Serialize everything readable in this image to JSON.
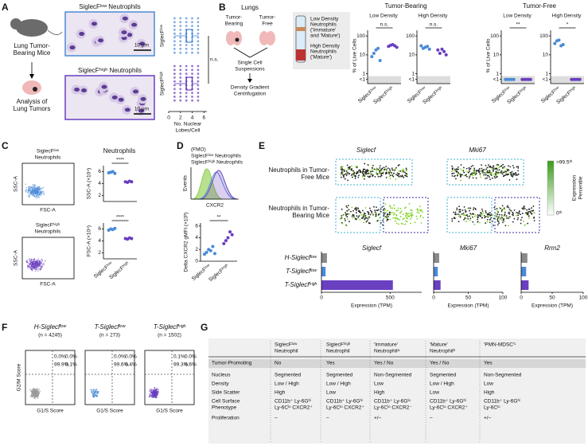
{
  "panel_labels": [
    "A",
    "B",
    "C",
    "D",
    "E",
    "F",
    "G"
  ],
  "a": {
    "mouse": [
      "Lung Tumor-",
      "Bearing Mice"
    ],
    "analysis": [
      "Analysis of",
      "Lung Tumors"
    ],
    "img_titles": [
      "SiglecFˡᵒʷ Neutrophils",
      "SiglecFʰⁱᵍʰ Neutrophils"
    ],
    "scale": [
      "10 μm",
      "10 μm"
    ],
    "box": {
      "type": "box",
      "rows": [
        "SiglecFˡᵒʷ",
        "SiglecFʰⁱᵍʰ"
      ],
      "colors": [
        "#4a8ad6",
        "#6a3fc0"
      ],
      "stats": [
        {
          "min": 1,
          "q1": 3,
          "median": 3,
          "q3": 4,
          "max": 5
        },
        {
          "min": 1,
          "q1": 3,
          "median": 3,
          "q3": 4,
          "max": 5
        }
      ],
      "xlabel": [
        "No. Nuclear",
        "Lobes/Cell"
      ],
      "xlim": [
        0,
        6.5
      ],
      "xticks": [
        0,
        2,
        4,
        6
      ],
      "annotation": "n.s."
    }
  },
  "b": {
    "lungs": "Lungs",
    "tb": [
      "Tumor-",
      "Bearing"
    ],
    "tf": [
      "Tumor-",
      "Free"
    ],
    "steps": [
      [
        "Single Cell",
        "Suspensions"
      ],
      [
        "Density Gradient",
        "Centrifugation"
      ]
    ],
    "tube": [
      [
        "Low Density",
        "Neutrophils",
        "('Immature'",
        "and 'Mature')"
      ],
      [
        "High Density",
        "Neutrophils",
        "('Mature')"
      ]
    ],
    "type": "dot",
    "log": true,
    "ylabel": "% of Live Cells",
    "ylim": [
      0.3,
      200
    ],
    "yticks": [
      {
        "value": 0.5,
        "label": "<1"
      },
      1,
      10,
      100
    ],
    "categories": [
      "SiglecFˡᵒʷ",
      "SiglecFʰⁱᵍʰ"
    ],
    "colors": [
      "#4a8ad6",
      "#6a3fc0"
    ],
    "groups": [
      {
        "title": "Tumor-Bearing",
        "charts": [
          {
            "title": "Low Density",
            "values": [
              [
                8,
                12,
                18,
                22,
                5
              ],
              [
                28,
                32,
                35,
                30,
                25
              ]
            ],
            "annotation": "n.s."
          },
          {
            "title": "High Density",
            "values": [
              [
                30,
                22,
                25,
                28,
                20
              ],
              [
                18,
                12,
                20,
                15,
                10
              ]
            ],
            "annotation": "n.s."
          }
        ]
      },
      {
        "title": "Tumor-Free",
        "charts": [
          {
            "title": "Low Density",
            "values": [
              [
                0.5,
                0.5,
                0.5,
                0.5,
                0.5
              ],
              [
                0.5,
                0.5,
                0.5,
                0.5,
                0.5
              ]
            ],
            "annotation": "**"
          },
          {
            "title": "High Density",
            "values": [
              [
                40,
                55,
                60,
                30,
                35
              ],
              [
                0.5,
                0.5,
                0.5,
                0.5,
                0.5
              ]
            ],
            "annotation": "*"
          }
        ]
      }
    ]
  },
  "c": {
    "flow_titles": [
      [
        "SiglecFˡᵒʷ",
        "Neutrophils"
      ],
      [
        "SiglecFʰⁱᵍʰ",
        "Neutrophils"
      ]
    ],
    "ssc": [
      "SSC-A",
      "SSC-A"
    ],
    "fsc": [
      "FSC-A",
      "FSC-A"
    ],
    "type": "dot",
    "title": "Neutrophils",
    "ylim": [
      1,
      7
    ],
    "yticks": [
      2,
      4,
      6
    ],
    "categories": [
      "SiglecFˡᵒʷ",
      "SiglecFʰⁱᵍʰ"
    ],
    "colors": [
      "#4a8ad6",
      "#6a3fc0"
    ],
    "charts": [
      {
        "ylabel": "SSC-A (×10⁴)",
        "values": [
          [
            5.8,
            5.9,
            6.0,
            5.7
          ],
          [
            4.3,
            4.2,
            4.4,
            4.3
          ]
        ],
        "annotation": "****"
      },
      {
        "ylabel": "FSC-A (×10⁴)",
        "values": [
          [
            5.8,
            6.0,
            5.9,
            6.1
          ],
          [
            4.4,
            4.3,
            4.5,
            4.4
          ]
        ],
        "annotation": "****"
      }
    ]
  },
  "d": {
    "legend": [
      "(FMO)",
      "SiglecFˡᵒʷ Neutrophils",
      "SiglecFʰⁱᵍʰ Neutrophils"
    ],
    "legend_colors": [
      "#8ccf4d",
      "#4a8ad6",
      "#6a3fc0"
    ],
    "events": "Events",
    "cxcr2": "CXCR2",
    "type": "dot",
    "ylabel": "Delta CXCR2 gMFI (×10³)",
    "ylim": [
      0,
      6.5
    ],
    "yticks": [
      0,
      2,
      4,
      6
    ],
    "categories": [
      "SiglecFˡᵒʷ",
      "SiglecFʰⁱᵍʰ"
    ],
    "colors": [
      "#4a8ad6",
      "#6a3fc0"
    ],
    "values": [
      [
        1.2,
        1.5,
        2.0,
        1.8,
        2.5,
        1.3
      ],
      [
        3.0,
        3.5,
        4.0,
        5.0,
        4.5
      ]
    ],
    "annotation": "**"
  },
  "e": {
    "genes_top": [
      "Siglecf",
      "Mki67"
    ],
    "rows_top": [
      [
        "Neutrophils in Tumor-",
        "Free Mice"
      ],
      [
        "Neutrophils in Tumor-",
        "Bearing Mice"
      ]
    ],
    "colorbar": {
      "top": ">99.5ᵗʰ",
      "bottom": "0ᵗʰ",
      "label": [
        "Expression",
        "Percentile"
      ]
    },
    "bars": {
      "type": "bar",
      "rows": [
        "H-Siglecfˡᵒʷ",
        "T-Siglecfˡᵒʷ",
        "T-Siglecfʰⁱᵍʰ"
      ],
      "colors": [
        "#8a8a8a",
        "#4a8ad6",
        "#6a3fc0"
      ],
      "xlabel": "Expression (TPM)",
      "genes": [
        {
          "name": "Siglecf",
          "values": [
            40,
            30,
            520
          ],
          "xlim": [
            0,
            730
          ],
          "xticks": [
            0,
            500
          ]
        },
        {
          "name": "Mki67",
          "values": [
            8,
            6,
            10
          ],
          "xlim": [
            0,
            100
          ],
          "xticks": [
            0,
            50,
            100
          ]
        },
        {
          "name": "Rrm2",
          "values": [
            10,
            8,
            12
          ],
          "xlim": [
            0,
            100
          ],
          "xticks": [
            0,
            50,
            100
          ]
        }
      ]
    }
  },
  "f": {
    "ylabel": "G2/M Score",
    "xlabel": "G1/S Score",
    "plots": [
      {
        "title": "H-Siglecfˡᵒʷ",
        "n": "(n = 4245)",
        "q": [
          "0.0%",
          "0.0%",
          "99.9%",
          "0.1%"
        ],
        "color": "#9a9a9a"
      },
      {
        "title": "T-Siglecfˡᵒʷ",
        "n": "(n = 273)",
        "q": [
          "0.0%",
          "0.0%",
          "99.6%",
          "0.4%"
        ],
        "color": "#4a8ad6"
      },
      {
        "title": "T-Siglecfʰⁱᵍʰ",
        "n": "(n = 1502)",
        "q": [
          "0.1%",
          "0.0%",
          "99.3%",
          "0.6%"
        ],
        "color": "#6a3fc0"
      }
    ]
  },
  "g": {
    "header": [
      [],
      [
        "SiglecFˡᵒʷ",
        "Neutrophil"
      ],
      [
        "SiglecFʰⁱᵍʰ",
        "Neutrophil"
      ],
      [
        "'Immature'",
        "Neutrophilᵃ"
      ],
      [
        "'Mature'",
        "Neutrophilᵇ"
      ],
      [
        "'PMN-MDSC'ᶜ"
      ]
    ],
    "rows": [
      [
        [
          "Tumor-Promoting"
        ],
        [
          "No"
        ],
        [
          "Yes"
        ],
        [
          "Yes / No"
        ],
        [
          "Yes / No"
        ],
        [
          "Yes"
        ]
      ],
      [
        [
          "Nucleus"
        ],
        [
          "Segmented"
        ],
        [
          "Segmented"
        ],
        [
          "Non-Segmented"
        ],
        [
          "Segmented"
        ],
        [
          "Non-Segmented"
        ]
      ],
      [
        [
          "Density"
        ],
        [
          "Low / High"
        ],
        [
          "Low / High"
        ],
        [
          "Low"
        ],
        [
          "Low / High"
        ],
        [
          "Low"
        ]
      ],
      [
        [
          "Side Scatter"
        ],
        [
          "High"
        ],
        [
          "Low"
        ],
        [
          "High"
        ],
        [
          "Low"
        ],
        [
          "High"
        ]
      ],
      [
        [
          "Cell Surface",
          "Phenotype"
        ],
        [
          "CD11b⁺ Ly-6Gʰⁱ",
          "Ly-6Cˡᵒ CXCR2⁺"
        ],
        [
          "CD11b⁺ Ly-6Gʰⁱ",
          "Ly-6Cˡᵒ CXCR2⁺"
        ],
        [
          "CD11b⁺ Ly-6Gˡᵒ",
          "Ly-6Cˡᵒ CXCR2⁻"
        ],
        [
          "CD11b⁺ Ly-6Gʰⁱ",
          "Ly-6Cˡᵒ CXCR2⁺"
        ],
        [
          "CD11b⁺ Ly-6Gʰⁱ",
          "Ly-6Cˡᵒ"
        ]
      ],
      [
        [
          "Proliferation"
        ],
        [
          "–"
        ],
        [
          "–"
        ],
        [
          "+/–"
        ],
        [
          "–"
        ],
        [
          "+/–"
        ]
      ]
    ]
  }
}
